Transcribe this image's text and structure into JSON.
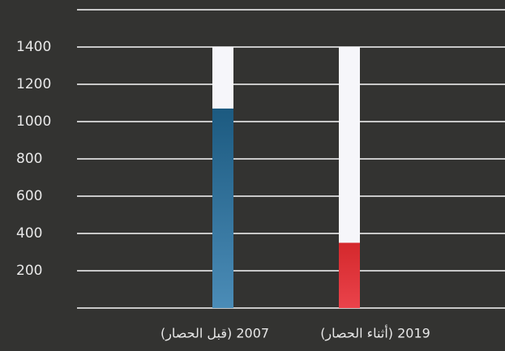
{
  "chart_data": {
    "type": "bar",
    "categories": [
      "2007 (قبل الحصار)",
      "2019 (أثناء الحصار)"
    ],
    "values": [
      1070,
      350
    ],
    "colors": [
      [
        "#1c5a80",
        "#4b8cb7"
      ],
      [
        "#d4282c",
        "#ea434b"
      ]
    ],
    "ylim": [
      0,
      1600
    ],
    "yticks": [
      200,
      400,
      600,
      800,
      1000,
      1200,
      1400
    ],
    "grid": true
  }
}
